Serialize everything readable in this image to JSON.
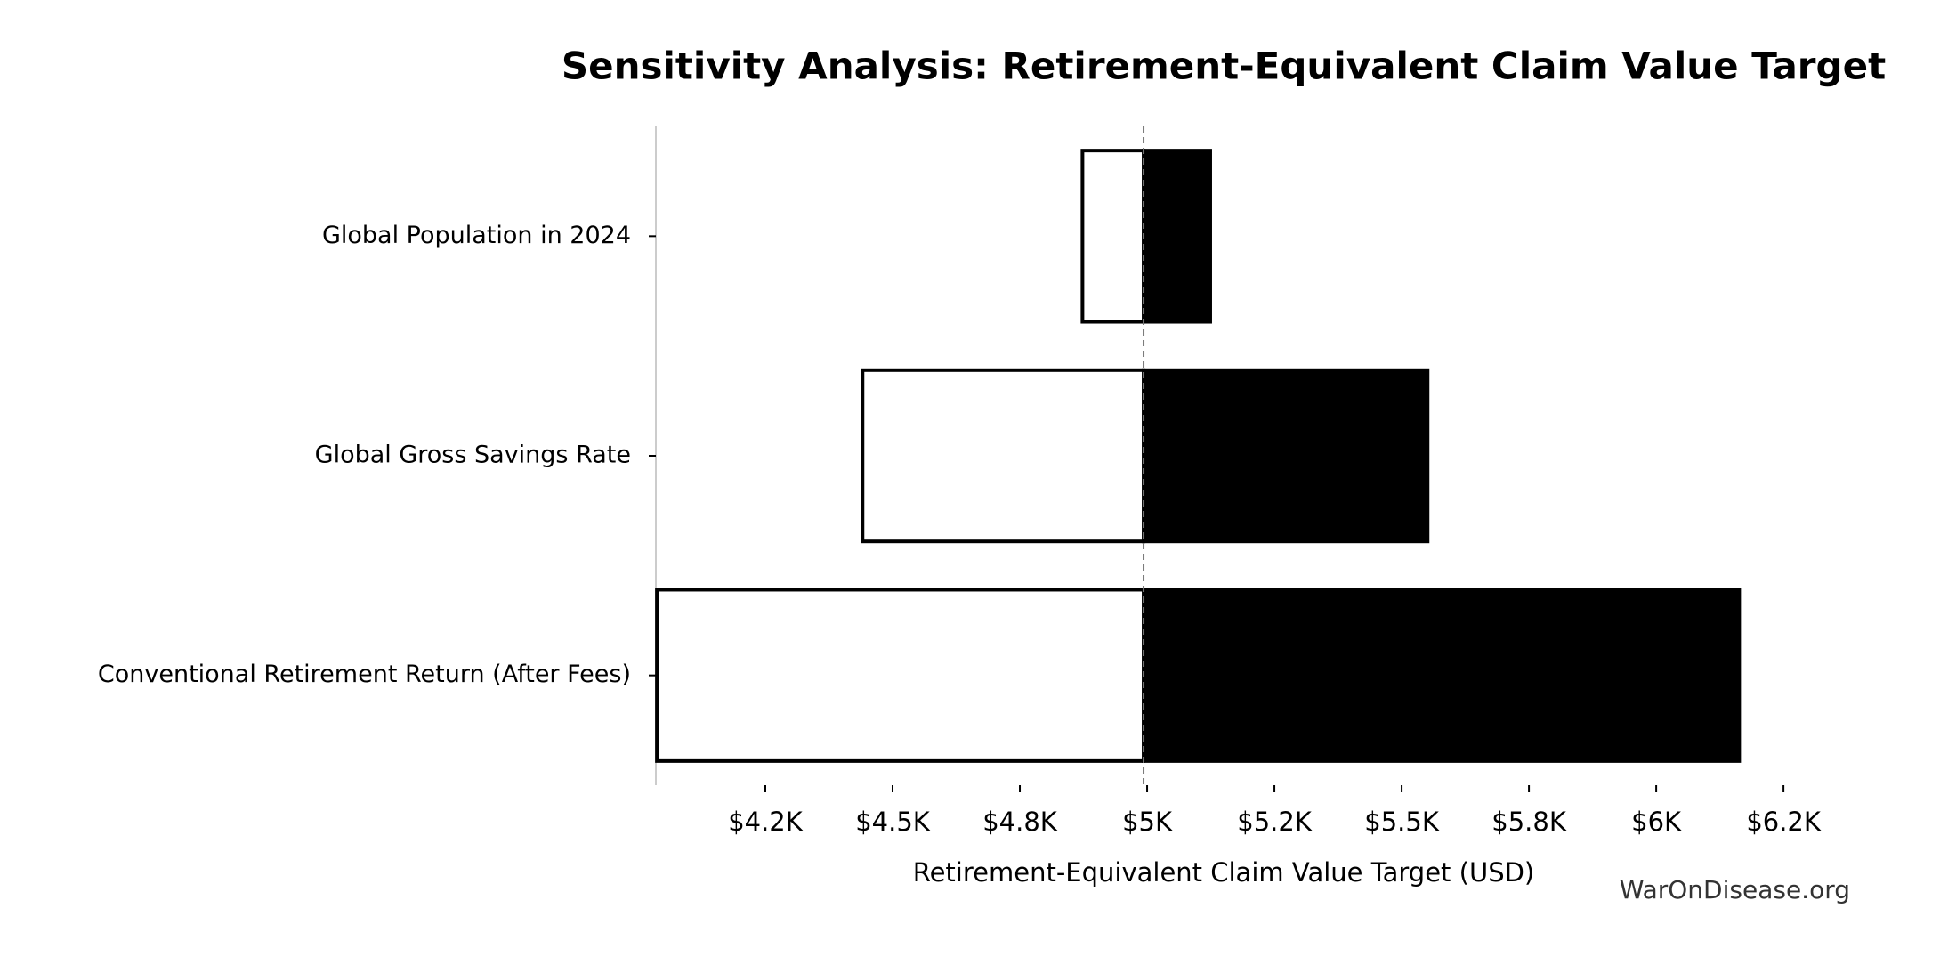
{
  "chart_data": {
    "type": "tornado",
    "title": "Sensitivity Analysis: Retirement-Equivalent Claim Value Target",
    "xlabel": "Retirement-Equivalent Claim Value Target (USD)",
    "watermark": "WarOnDisease.org",
    "categories": [
      "Global Population in 2024",
      "Global Gross Savings Rate",
      "Conventional Retirement Return (After Fees)"
    ],
    "baseline": 4993,
    "low": [
      4873,
      4441,
      4037
    ],
    "high": [
      5124,
      5551,
      6163
    ],
    "low_color": "#ffffff",
    "high_color": "#000000",
    "xlim": [
      4035,
      6290
    ],
    "xticks": [
      {
        "value": 4250,
        "label": "$4.2K"
      },
      {
        "value": 4500,
        "label": "$4.5K"
      },
      {
        "value": 4750,
        "label": "$4.8K"
      },
      {
        "value": 5000,
        "label": "$5K"
      },
      {
        "value": 5250,
        "label": "$5.2K"
      },
      {
        "value": 5500,
        "label": "$5.5K"
      },
      {
        "value": 5750,
        "label": "$5.8K"
      },
      {
        "value": 6000,
        "label": "$6K"
      },
      {
        "value": 6250,
        "label": "$6.2K"
      }
    ]
  }
}
